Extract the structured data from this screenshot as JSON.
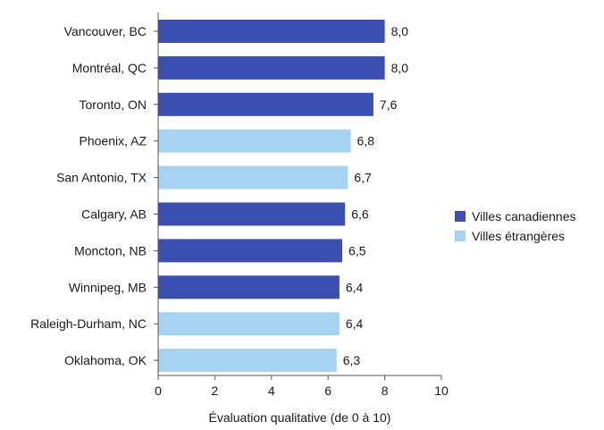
{
  "chart_data": {
    "type": "bar",
    "orientation": "horizontal",
    "title": "",
    "xlabel": "Évaluation qualitative (de 0 à 10)",
    "ylabel": "",
    "xlim": [
      0,
      10
    ],
    "xticks": [
      0,
      2,
      4,
      6,
      8,
      10
    ],
    "grid": false,
    "legend_position": "right",
    "categories": [
      "Vancouver, BC",
      "Montréal, QC",
      "Toronto, ON",
      "Phoenix, AZ",
      "San Antonio, TX",
      "Calgary, AB",
      "Moncton, NB",
      "Winnipeg, MB",
      "Raleigh-Durham, NC",
      "Oklahoma, OK"
    ],
    "values": [
      8.0,
      8.0,
      7.6,
      6.8,
      6.7,
      6.6,
      6.5,
      6.4,
      6.4,
      6.3
    ],
    "value_labels": [
      "8,0",
      "8,0",
      "7,6",
      "6,8",
      "6,7",
      "6,6",
      "6,5",
      "6,4",
      "6,4",
      "6,3"
    ],
    "groups": [
      "canadian",
      "canadian",
      "canadian",
      "foreign",
      "foreign",
      "canadian",
      "canadian",
      "canadian",
      "foreign",
      "foreign"
    ],
    "legend": [
      {
        "key": "canadian",
        "label": "Villes canadiennes",
        "color": "#3a4fb0"
      },
      {
        "key": "foreign",
        "label": "Villes étrangères",
        "color": "#a6d3f2"
      }
    ]
  }
}
